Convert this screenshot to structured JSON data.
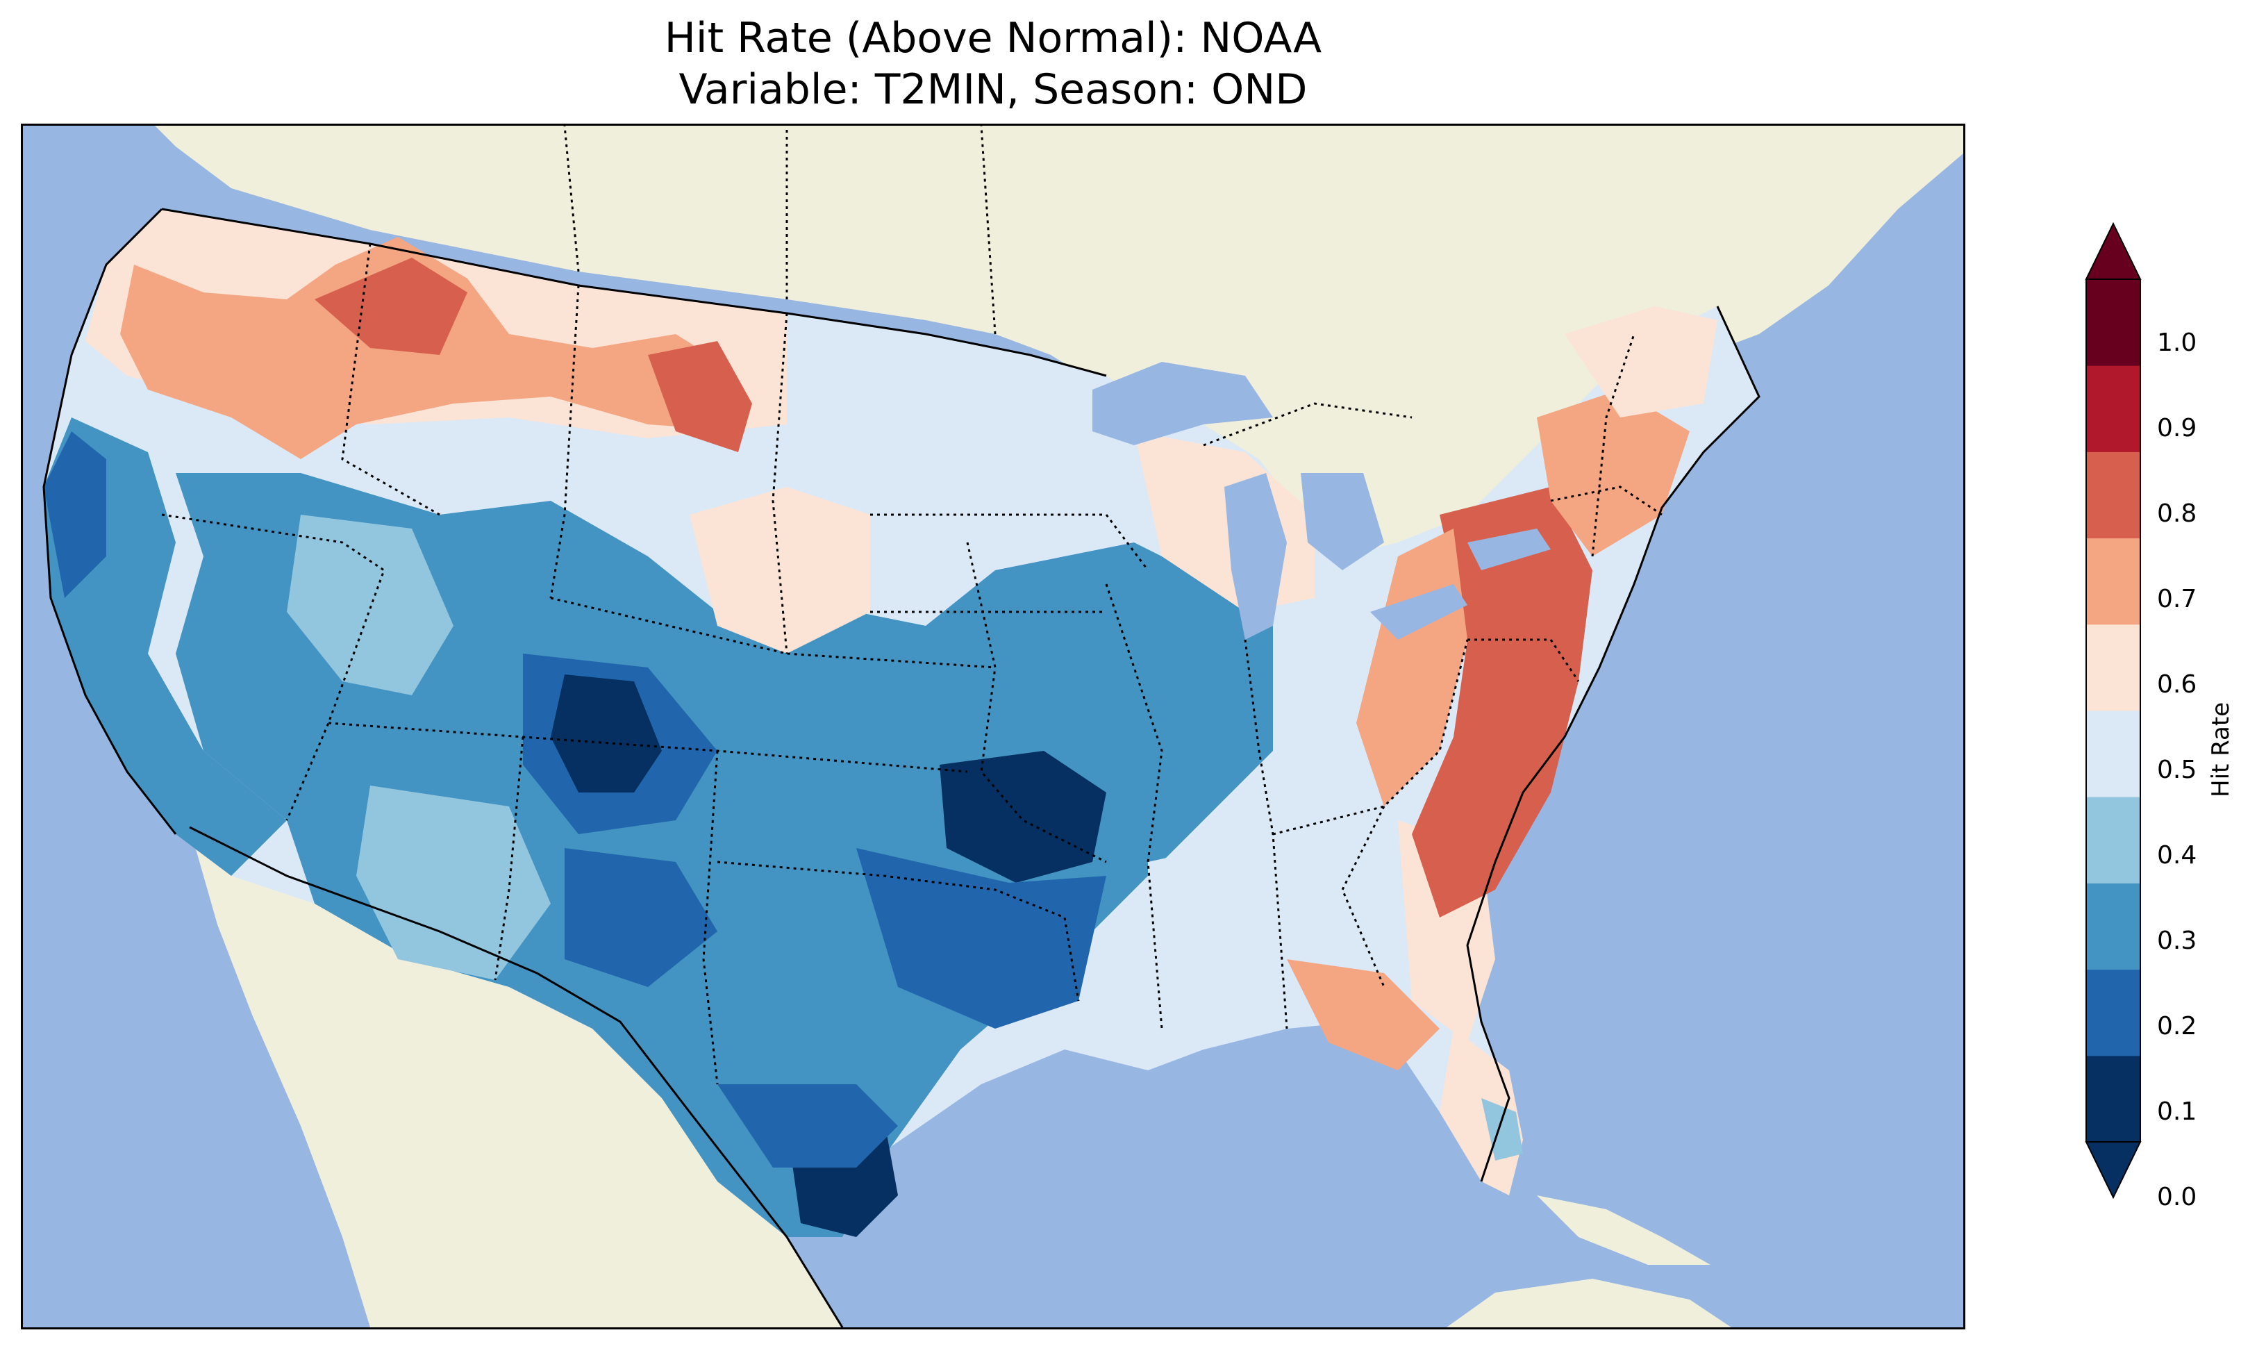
{
  "title": {
    "line1": "Hit Rate (Above Normal): NOAA",
    "line2": "Variable: T2MIN, Season: OND"
  },
  "colors": {
    "ocean": "#97b6e1",
    "land": "#efefdc",
    "state_border": "#000000"
  },
  "colorbar": {
    "label": "Hit Rate",
    "ticks": [
      "0.0",
      "0.1",
      "0.2",
      "0.3",
      "0.4",
      "0.5",
      "0.6",
      "0.7",
      "0.8",
      "0.9",
      "1.0"
    ],
    "bins": [
      {
        "range": "0.0-0.1",
        "color": "#053061"
      },
      {
        "range": "0.1-0.2",
        "color": "#2166ac"
      },
      {
        "range": "0.2-0.3",
        "color": "#4393c3"
      },
      {
        "range": "0.3-0.4",
        "color": "#92c5de"
      },
      {
        "range": "0.4-0.5",
        "color": "#dbe9f6"
      },
      {
        "range": "0.5-0.6",
        "color": "#fbe3d6"
      },
      {
        "range": "0.6-0.7",
        "color": "#f4a582"
      },
      {
        "range": "0.7-0.8",
        "color": "#d6604d"
      },
      {
        "range": "0.8-0.9",
        "color": "#b2182b"
      },
      {
        "range": "0.9-1.0",
        "color": "#67001f"
      }
    ],
    "under_color": "#053061",
    "over_color": "#67001f"
  },
  "regions": [
    {
      "name": "pacific-northwest",
      "bin": "0.5-0.6"
    },
    {
      "name": "northern-rockies",
      "bin": "0.6-0.7"
    },
    {
      "name": "montana-core",
      "bin": "0.7-0.8"
    },
    {
      "name": "california-coast",
      "bin": "0.1-0.2"
    },
    {
      "name": "great-basin",
      "bin": "0.2-0.3"
    },
    {
      "name": "colorado-rockies",
      "bin": "0.0-0.1"
    },
    {
      "name": "central-plains",
      "bin": "0.2-0.3"
    },
    {
      "name": "ozarks",
      "bin": "0.0-0.1"
    },
    {
      "name": "south-texas",
      "bin": "0.0-0.1"
    },
    {
      "name": "southeast",
      "bin": "0.4-0.5"
    },
    {
      "name": "mid-atlantic",
      "bin": "0.7-0.8"
    },
    {
      "name": "northeast",
      "bin": "0.6-0.7"
    },
    {
      "name": "florida",
      "bin": "0.5-0.6"
    }
  ]
}
